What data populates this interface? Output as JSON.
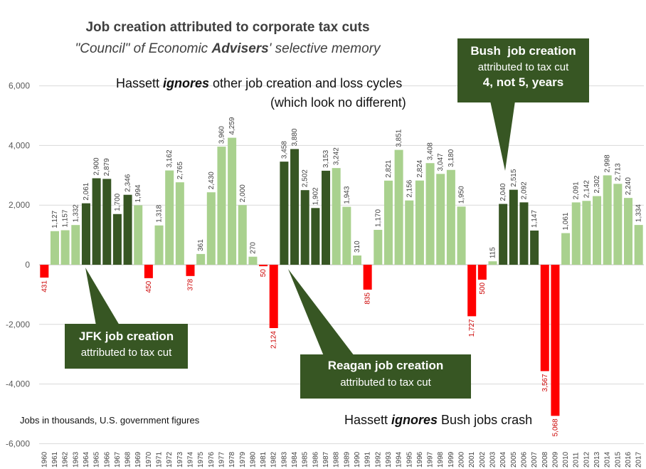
{
  "title": "Job creation attributed to corporate tax cuts",
  "subtitle": {
    "part1": "\"Council\" of Economic ",
    "part2": "Advisers",
    "part3": "' selective memory"
  },
  "notes": {
    "top_line1_pre": "Hassett ",
    "top_line1_em": "ignores",
    "top_line1_post": " other job creation and loss cycles",
    "top_line2": "(which look no different)",
    "bottom_pre": "Hassett ",
    "bottom_em": "ignores",
    "bottom_post": " Bush jobs crash",
    "footnote": "Jobs in thousands, U.S. government figures"
  },
  "callouts": {
    "jfk": {
      "head": "JFK job creation",
      "body": "attributed to tax cut"
    },
    "reagan": {
      "head": "Reagan job creation",
      "body": "attributed to tax cut"
    },
    "bush": {
      "head": "Bush  job creation",
      "body": "attributed to tax cut",
      "strong": "4, not 5, years"
    }
  },
  "colors": {
    "positive": "#a9d18e",
    "highlighted": "#375623",
    "negative": "#ff0000",
    "callout": "#375623",
    "gridline": "#d9d9d9"
  },
  "chart_data": {
    "type": "bar",
    "ylabel": "Jobs in thousands",
    "ylim": [
      -6000,
      6000
    ],
    "yticks": [
      -6000,
      -4000,
      -2000,
      0,
      2000,
      4000,
      6000
    ],
    "ytick_labels": [
      "-6,000",
      "-4,000",
      "-2,000",
      "0",
      "2,000",
      "4,000",
      "6,000"
    ],
    "grid": true,
    "categories": [
      "1960",
      "1961",
      "1962",
      "1963",
      "1964",
      "1965",
      "1966",
      "1967",
      "1968",
      "1969",
      "1970",
      "1971",
      "1972",
      "1973",
      "1974",
      "1975",
      "1976",
      "1977",
      "1978",
      "1979",
      "1980",
      "1981",
      "1982",
      "1983",
      "1984",
      "1985",
      "1986",
      "1987",
      "1988",
      "1989",
      "1990",
      "1991",
      "1992",
      "1993",
      "1994",
      "1995",
      "1996",
      "1997",
      "1998",
      "1999",
      "2000",
      "2001",
      "2002",
      "2003",
      "2004",
      "2005",
      "2006",
      "2007",
      "2008",
      "2009",
      "2010",
      "2011",
      "2012",
      "2013",
      "2014",
      "2015",
      "2016",
      "2017"
    ],
    "values": [
      -431,
      1127,
      1157,
      1332,
      2061,
      2900,
      2879,
      1700,
      2346,
      1994,
      -450,
      1318,
      3162,
      2765,
      -378,
      361,
      2430,
      3960,
      4259,
      2000,
      270,
      -50,
      -2124,
      3458,
      3880,
      2502,
      1902,
      3153,
      3242,
      1943,
      310,
      -835,
      1170,
      2821,
      3851,
      2156,
      2824,
      3408,
      3047,
      3180,
      1950,
      -1727,
      -500,
      115,
      2040,
      2515,
      2092,
      1147,
      -3567,
      -5068,
      1061,
      2091,
      2142,
      2302,
      2998,
      2713,
      2240,
      1334
    ],
    "labels": [
      "431",
      "1,127",
      "1,157",
      "1,332",
      "2,061",
      "2,900",
      "2,879",
      "1,700",
      "2,346",
      "1,994",
      "450",
      "1,318",
      "3,162",
      "2,765",
      "378",
      "361",
      "2,430",
      "3,960",
      "4,259",
      "2,000",
      "270",
      "50",
      "2,124",
      "3,458",
      "3,880",
      "2,502",
      "1,902",
      "3,153",
      "3,242",
      "1,943",
      "310",
      "835",
      "1,170",
      "2,821",
      "3,851",
      "2,156",
      "2,824",
      "3,408",
      "3,047",
      "3,180",
      "1,950",
      "1,727",
      "500",
      "115",
      "2,040",
      "2,515",
      "2,092",
      "1,147",
      "3,567",
      "5,068",
      "1,061",
      "2,091",
      "2,142",
      "2,302",
      "2,998",
      "2,713",
      "2,240",
      "1,334"
    ],
    "highlighted_years": [
      "1964",
      "1965",
      "1966",
      "1967",
      "1968",
      "1983",
      "1984",
      "1985",
      "1986",
      "1987",
      "2004",
      "2005",
      "2006",
      "2007"
    ]
  }
}
